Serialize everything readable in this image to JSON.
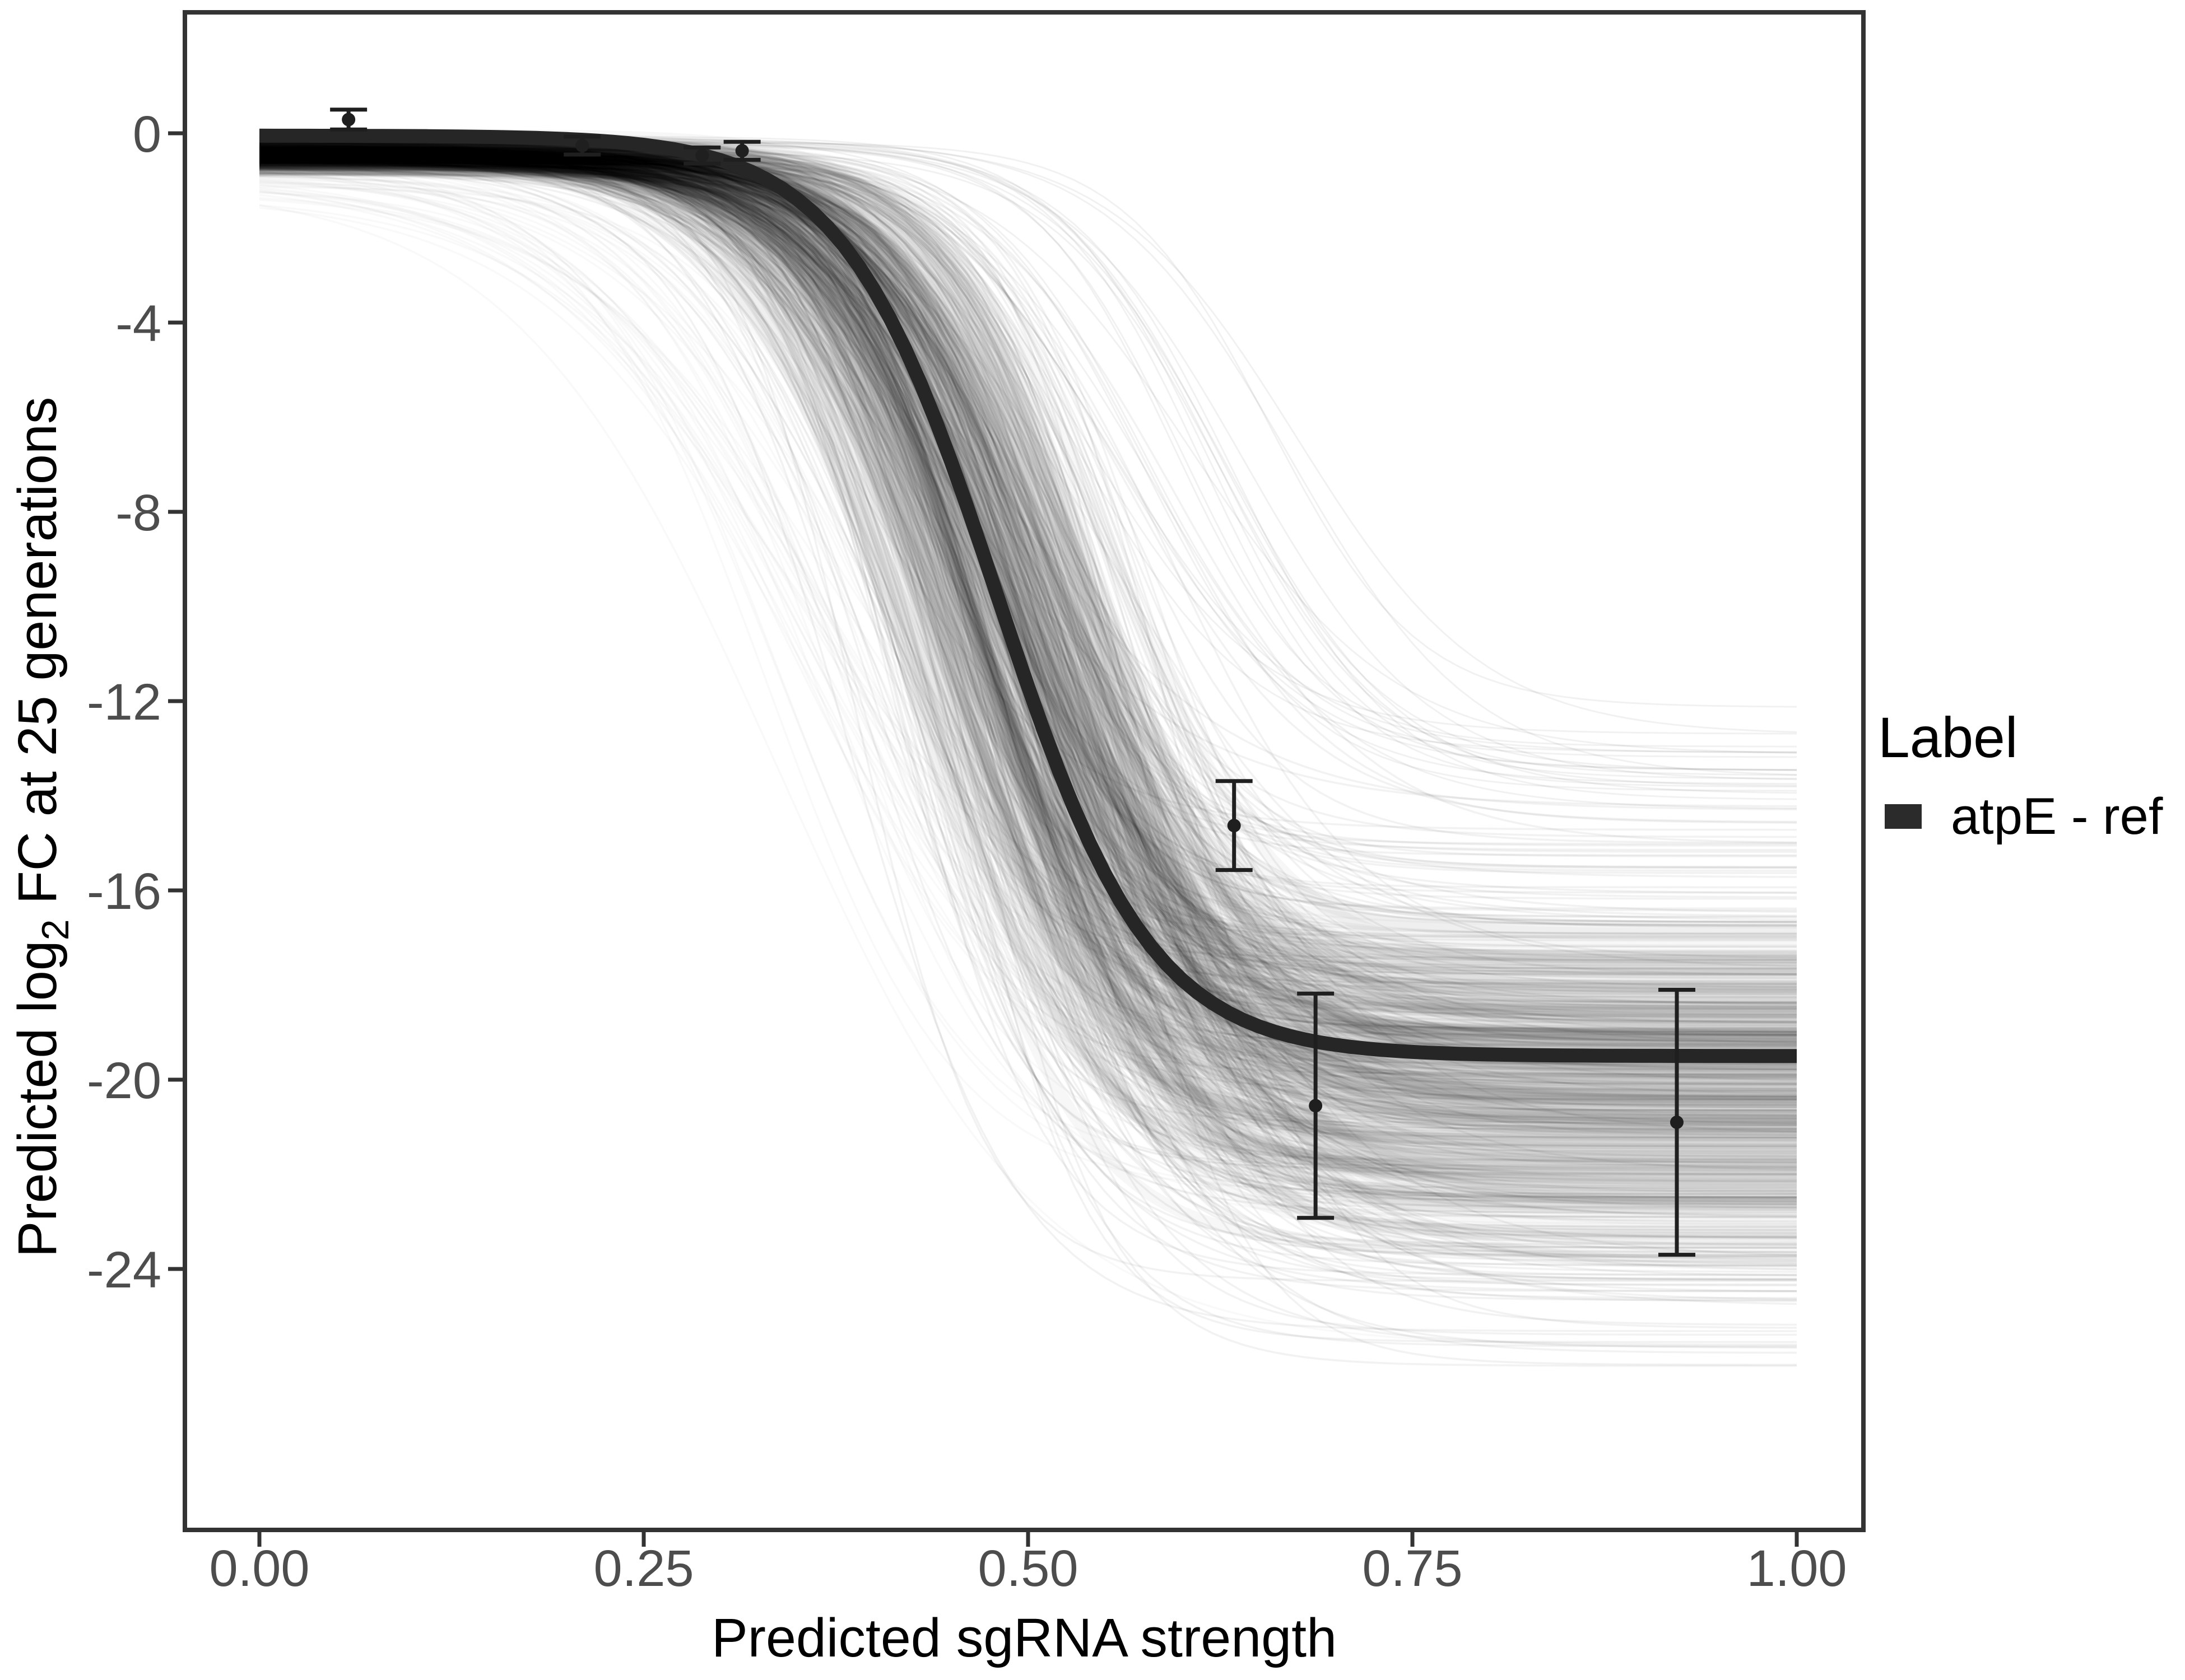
{
  "figure": {
    "background": "#ffffff",
    "panel_border_color": "#333333",
    "tick_color": "#333333",
    "axis_text_color": "#4d4d4d",
    "title_text_color": "#000000"
  },
  "axes": {
    "x": {
      "title": "Predicted sgRNA strength",
      "tick_labels": [
        "0.00",
        "0.25",
        "0.50",
        "0.75",
        "1.00"
      ],
      "tick_values": [
        0,
        0.25,
        0.5,
        0.75,
        1.0
      ]
    },
    "y": {
      "title_pre": "Predicted  log",
      "title_sub": "2",
      "title_post": " FC at 25 generations",
      "tick_labels": [
        "0",
        "-4",
        "-8",
        "-12",
        "-16",
        "-20",
        "-24"
      ],
      "tick_values": [
        0,
        -4,
        -8,
        -12,
        -16,
        -20,
        -24
      ]
    }
  },
  "legend": {
    "title": "Label",
    "entries": [
      {
        "label": "atpE - ref",
        "swatch_color": "#2b2b2b"
      }
    ]
  },
  "chart_data": {
    "type": "line",
    "title": "",
    "xlabel": "Predicted sgRNA strength",
    "ylabel": "Predicted log2 FC at 25 generations",
    "xlim": [
      -0.049,
      1.043
    ],
    "ylim": [
      -29.5,
      2.56
    ],
    "x_ticks": [
      0,
      0.25,
      0.5,
      0.75,
      1.0
    ],
    "y_ticks": [
      0,
      -4,
      -8,
      -12,
      -16,
      -20,
      -24
    ],
    "grid": "off",
    "legend_position": "right",
    "ref_curve": {
      "name": "atpE - ref",
      "model": "logistic",
      "top": -0.05,
      "bottom": -19.5,
      "midpoint": 0.48,
      "steepness": 20,
      "color": "#262626",
      "stroke_width": 25,
      "x_range": [
        0,
        1
      ]
    },
    "posterior_draws": {
      "description": "bundle of faint gray logistic draw curves",
      "color": "#000000",
      "x_range": [
        0,
        1
      ],
      "groups": [
        {
          "name": "density-wash",
          "count": 150,
          "stroke_width": 22,
          "opacity": 0.03,
          "x0": [
            0.4,
            0.565
          ],
          "k": [
            14,
            24
          ],
          "top": [
            -0.85,
            0
          ],
          "bottom": [
            -24.3,
            -16.3
          ]
        },
        {
          "name": "strands",
          "count": 350,
          "stroke_width": 3.6,
          "opacity": 0.05,
          "x0": [
            0.375,
            0.6
          ],
          "k": [
            12,
            26
          ],
          "top": [
            -0.9,
            0
          ],
          "bottom": [
            -26.5,
            -13.5
          ]
        },
        {
          "name": "faint-left",
          "count": 40,
          "stroke_width": 3.6,
          "opacity": 0.022,
          "x0": [
            0.3,
            0.44
          ],
          "k": [
            10,
            18
          ],
          "top": [
            -1.5,
            -0.25
          ],
          "bottom": [
            -26.0,
            -16.0
          ]
        },
        {
          "name": "upper-right",
          "count": 22,
          "stroke_width": 3.0,
          "opacity": 0.055,
          "x0": [
            0.52,
            0.7
          ],
          "k": [
            13,
            22
          ],
          "top": [
            -0.4,
            0
          ],
          "bottom": [
            -14.6,
            -11.9
          ]
        }
      ]
    },
    "error_points": [
      {
        "x": 0.058,
        "y": 0.29,
        "err": 0.21
      },
      {
        "x": 0.21,
        "y": -0.26,
        "err": 0.19
      },
      {
        "x": 0.288,
        "y": -0.47,
        "err": 0.17
      },
      {
        "x": 0.314,
        "y": -0.37,
        "err": 0.19
      },
      {
        "x": 0.634,
        "y": -14.63,
        "err": 0.94
      },
      {
        "x": 0.687,
        "y": -20.55,
        "err": 2.37
      },
      {
        "x": 0.922,
        "y": -20.9,
        "err": 2.8
      }
    ],
    "error_point_style": {
      "color": "#1f1f1f",
      "stroke_width": 7,
      "cap_half_width": 33,
      "dot_radius": 12
    }
  }
}
